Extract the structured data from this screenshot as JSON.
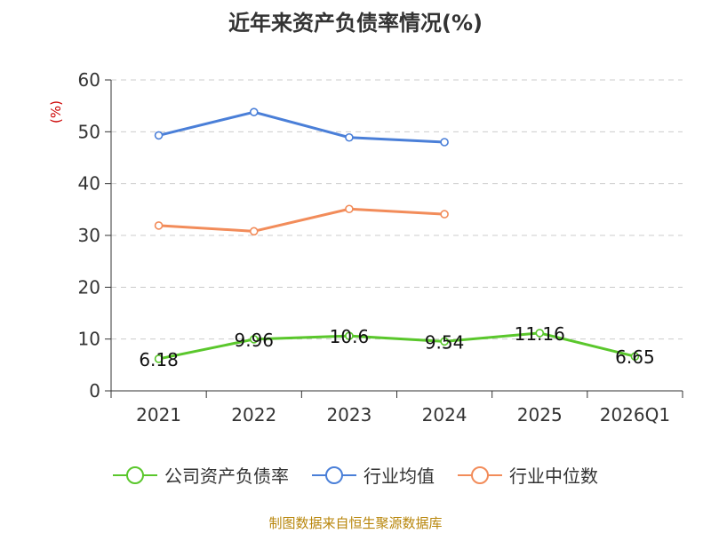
{
  "title": "近年来资产负债率情况(%)",
  "source_note": "制图数据来自恒生聚源数据库",
  "chart_data": {
    "type": "line",
    "title": "近年来资产负债率情况(%)",
    "categories": [
      "2021",
      "2022",
      "2023",
      "2024",
      "2025",
      "2026Q1"
    ],
    "yunit": "(%)",
    "ylim": [
      0,
      60
    ],
    "yticks": [
      0,
      10,
      20,
      30,
      40,
      50,
      60
    ],
    "grid": true,
    "legend_position": "bottom",
    "series": [
      {
        "name": "公司资产负债率",
        "color": "#5ac72c",
        "values": [
          6.18,
          9.96,
          10.6,
          9.54,
          11.16,
          6.65
        ],
        "labels": [
          "6.18",
          "9.96",
          "10.6",
          "9.54",
          "11.16",
          "6.65"
        ]
      },
      {
        "name": "行业均值",
        "color": "#4a7fd8",
        "values": [
          49.3,
          53.8,
          48.9,
          48.0,
          null,
          null
        ]
      },
      {
        "name": "行业中位数",
        "color": "#f28c5a",
        "values": [
          31.9,
          30.8,
          35.1,
          34.1,
          null,
          null
        ]
      }
    ]
  }
}
